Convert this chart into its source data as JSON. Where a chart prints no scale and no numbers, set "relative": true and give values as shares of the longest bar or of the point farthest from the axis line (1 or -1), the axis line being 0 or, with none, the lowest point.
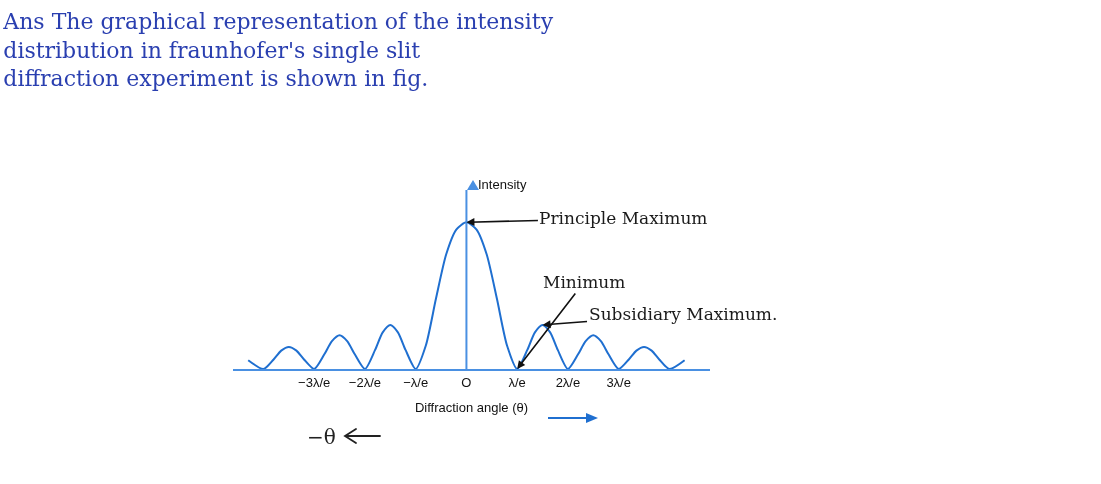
{
  "chart_data": {
    "type": "line",
    "title": "Ans The graphical representation of the intensity distribution in fraunhofer's single slit diffraction experiment is shown in fig.",
    "xlabel": "Diffraction angle (θ)",
    "ylabel": "Intensity",
    "relative": true,
    "x": [
      -4.3,
      -4,
      -3.8,
      -3.65,
      -3.5,
      -3.35,
      -3.2,
      -3,
      -2.8,
      -2.65,
      -2.5,
      -2.35,
      -2.2,
      -2,
      -1.8,
      -1.65,
      -1.5,
      -1.35,
      -1.2,
      -1,
      -0.8,
      -0.6,
      -0.4,
      -0.2,
      0,
      0.2,
      0.4,
      0.6,
      0.8,
      1,
      1.2,
      1.35,
      1.5,
      1.65,
      1.8,
      2,
      2.2,
      2.35,
      2.5,
      2.65,
      2.8,
      3,
      3.2,
      3.35,
      3.5,
      3.65,
      3.8,
      4,
      4.3
    ],
    "series": [
      {
        "color": "#1f6fd0",
        "values": [
          0.06,
          0,
          0.065,
          0.125,
          0.15,
          0.125,
          0.065,
          0,
          0.1,
          0.19,
          0.23,
          0.19,
          0.1,
          0,
          0.13,
          0.25,
          0.3,
          0.25,
          0.13,
          0,
          0.16,
          0.48,
          0.78,
          0.95,
          1,
          0.95,
          0.78,
          0.48,
          0.16,
          0,
          0.13,
          0.25,
          0.3,
          0.25,
          0.13,
          0,
          0.1,
          0.19,
          0.23,
          0.19,
          0.1,
          0,
          0.065,
          0.125,
          0.15,
          0.125,
          0.065,
          0,
          0.06
        ]
      }
    ],
    "xlim": [
      -4.6,
      4.8
    ],
    "xticks": [
      {
        "value": -3,
        "label": "−3λ/e"
      },
      {
        "value": -2,
        "label": "−2λ/e"
      },
      {
        "value": -1,
        "label": "−λ/e"
      },
      {
        "value": 0,
        "label": "O"
      },
      {
        "value": 1,
        "label": "λ/e"
      },
      {
        "value": 2,
        "label": "2λ/e"
      },
      {
        "value": 3,
        "label": "3λ/e"
      }
    ],
    "annotations": [
      {
        "text": "Principle Maximum",
        "x": 0,
        "y": 1
      },
      {
        "text": "Minimum",
        "x": 1,
        "y": 0
      },
      {
        "text": "Subsidiary Maximum.",
        "x": 1.5,
        "y": 0.3
      },
      "−θ"
    ],
    "ref_lines": [
      {
        "axis": "x",
        "value": 0,
        "color": "#4a90e2"
      }
    ],
    "grid": false,
    "marker": "none",
    "line_style": "solid"
  }
}
